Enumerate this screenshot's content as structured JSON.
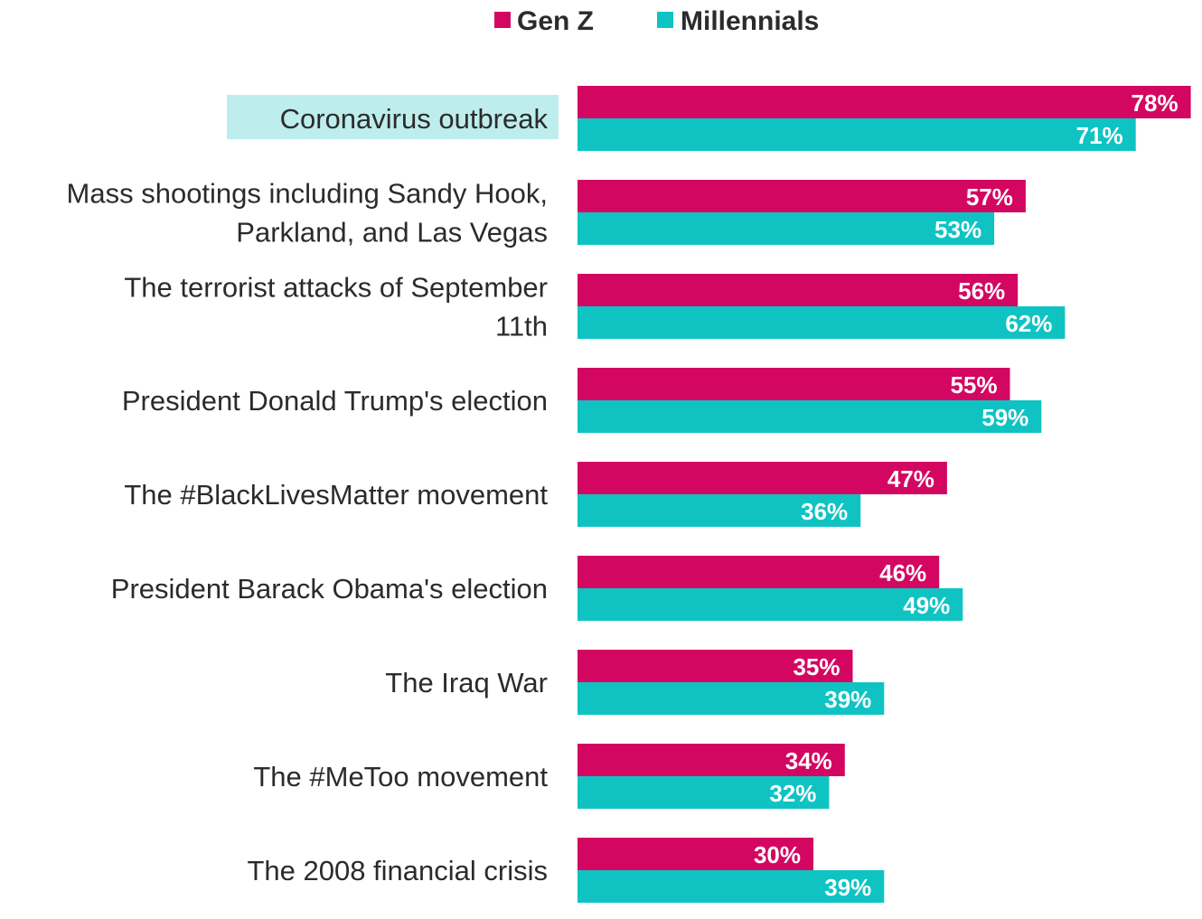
{
  "chart_data": {
    "type": "bar",
    "orientation": "horizontal",
    "title": "",
    "xlabel": "",
    "ylabel": "",
    "xlim": [
      0,
      100
    ],
    "grid": false,
    "legend_position": "top-center",
    "highlighted_category": "Coronavirus outbreak",
    "categories": [
      "Coronavirus outbreak",
      "Mass shootings including Sandy Hook, Parkland, and Las Vegas",
      "The terrorist attacks of September 11th",
      "President Donald Trump's election",
      "The #BlackLivesMatter movement",
      "President Barack Obama's election",
      "The Iraq War",
      "The #MeToo movement",
      "The 2008 financial crisis"
    ],
    "series": [
      {
        "name": "Gen Z",
        "color": "#D30761",
        "values": [
          78,
          57,
          56,
          55,
          47,
          46,
          35,
          34,
          30
        ]
      },
      {
        "name": "Millennials",
        "color": "#0FC3C3",
        "values": [
          71,
          53,
          62,
          59,
          36,
          49,
          39,
          32,
          39
        ]
      }
    ],
    "value_suffix": "%",
    "highlight_color": "#BDEDEC",
    "text_color": "#2B2B2B"
  }
}
